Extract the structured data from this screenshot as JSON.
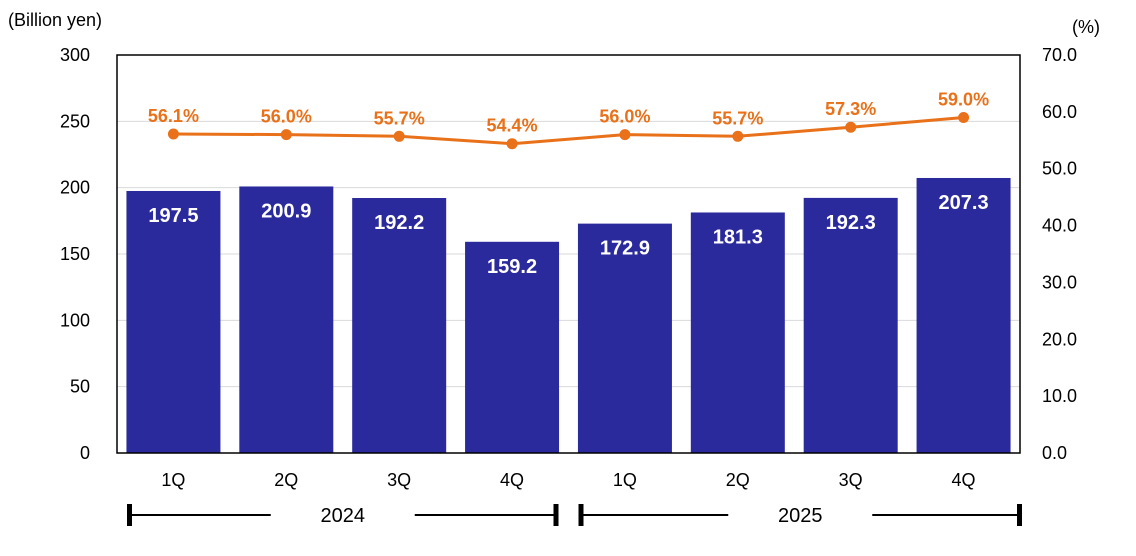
{
  "chart_data": {
    "type": "bar",
    "left_unit": "(Billion yen)",
    "right_unit": "(%)",
    "y_left_range": [
      0,
      300
    ],
    "y_left_ticks": [
      "0",
      "50",
      "100",
      "150",
      "200",
      "250",
      "300"
    ],
    "y_right_range": [
      0,
      70
    ],
    "y_right_ticks": [
      "0.0",
      "10.0",
      "20.0",
      "30.0",
      "40.0",
      "50.0",
      "60.0",
      "70.0"
    ],
    "categories": [
      "1Q",
      "2Q",
      "3Q",
      "4Q",
      "1Q",
      "2Q",
      "3Q",
      "4Q"
    ],
    "groups": [
      {
        "label": "2024",
        "span": 4
      },
      {
        "label": "2025",
        "span": 4
      }
    ],
    "grid": true,
    "series": [
      {
        "kind": "bar",
        "axis": "left",
        "color": "#2b2a9c",
        "values": [
          197.5,
          200.9,
          192.2,
          159.2,
          172.9,
          181.3,
          192.3,
          207.3
        ],
        "labels": [
          "197.5",
          "200.9",
          "192.2",
          "159.2",
          "172.9",
          "181.3",
          "192.3",
          "207.3"
        ]
      },
      {
        "kind": "line",
        "axis": "right",
        "color": "#e8711a",
        "values": [
          56.1,
          56.0,
          55.7,
          54.4,
          56.0,
          55.7,
          57.3,
          59.0
        ],
        "labels": [
          "56.1%",
          "56.0%",
          "55.7%",
          "54.4%",
          "56.0%",
          "55.7%",
          "57.3%",
          "59.0%"
        ]
      }
    ]
  }
}
